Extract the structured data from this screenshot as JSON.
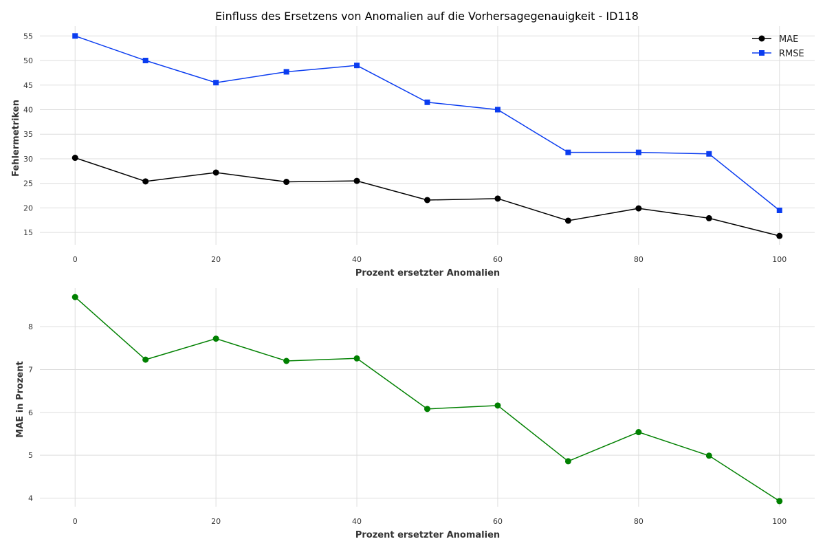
{
  "chart_data": [
    {
      "type": "line",
      "title": "Einfluss des Ersetzens von Anomalien auf die Vorhersagegenauigkeit - ID118",
      "xlabel": "Prozent ersetzter Anomalien",
      "ylabel": "Fehlermetriken",
      "x": [
        0,
        10,
        20,
        30,
        40,
        50,
        60,
        70,
        80,
        90,
        100
      ],
      "xticks": [
        0,
        20,
        40,
        60,
        80,
        100
      ],
      "yticks": [
        15,
        20,
        25,
        30,
        35,
        40,
        45,
        50,
        55
      ],
      "xlim": [
        -5,
        105
      ],
      "ylim": [
        12.5,
        57
      ],
      "grid": true,
      "legend_position": "top-right",
      "series": [
        {
          "name": "MAE",
          "color": "#000000",
          "marker": "circle",
          "values": [
            30.2,
            25.4,
            27.2,
            25.3,
            25.5,
            21.6,
            21.9,
            17.4,
            19.9,
            17.9,
            14.3
          ]
        },
        {
          "name": "RMSE",
          "color": "#0a3cf0",
          "marker": "square",
          "values": [
            55.0,
            50.0,
            45.5,
            47.7,
            49.0,
            41.5,
            40.0,
            31.3,
            31.3,
            31.0,
            19.5
          ]
        }
      ]
    },
    {
      "type": "line",
      "xlabel": "Prozent ersetzter Anomalien",
      "ylabel": "MAE in Prozent",
      "x": [
        0,
        10,
        20,
        30,
        40,
        50,
        60,
        70,
        80,
        90,
        100
      ],
      "xticks": [
        0,
        20,
        40,
        60,
        80,
        100
      ],
      "yticks": [
        4,
        5,
        6,
        7,
        8
      ],
      "xlim": [
        -5,
        105
      ],
      "ylim": [
        3.8,
        8.9
      ],
      "grid": true,
      "series": [
        {
          "color": "#008000",
          "marker": "circle",
          "values": [
            8.69,
            7.23,
            7.72,
            7.2,
            7.26,
            6.08,
            6.16,
            4.86,
            5.54,
            4.99,
            3.93
          ]
        }
      ]
    }
  ]
}
